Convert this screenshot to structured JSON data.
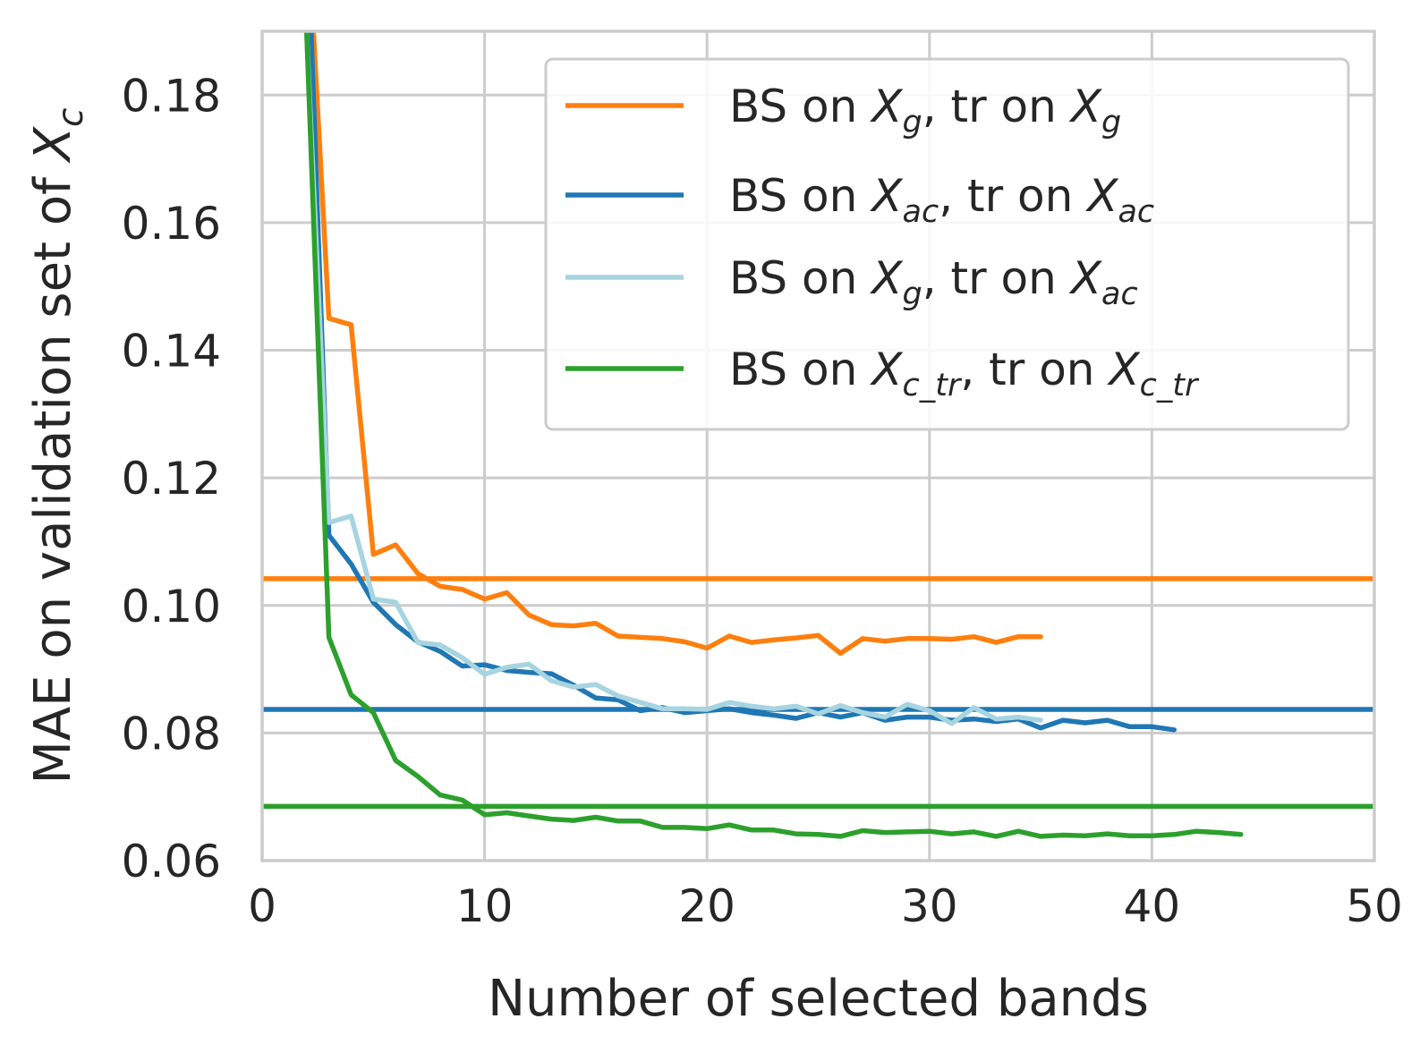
{
  "chart_data": {
    "type": "line",
    "xlabel": "Number of selected bands",
    "ylabel": {
      "text": "MAE on validation set of ",
      "var": "X",
      "sub": "c"
    },
    "xlim": [
      0,
      50
    ],
    "ylim": [
      0.06,
      0.19
    ],
    "xticks": [
      "0",
      "10",
      "20",
      "30",
      "40",
      "50"
    ],
    "yticks": [
      "0.06",
      "0.08",
      "0.10",
      "0.12",
      "0.14",
      "0.16",
      "0.18"
    ],
    "grid": true,
    "legend_position": "top-right",
    "series": [
      {
        "name": {
          "pre": "BS on ",
          "var1": "X",
          "sub1": "g",
          "mid": ", tr on ",
          "var2": "X",
          "sub2": "g"
        },
        "color": "#ff7f0e",
        "x": [
          2,
          3,
          4,
          5,
          6,
          7,
          8,
          9,
          10,
          11,
          12,
          13,
          14,
          15,
          16,
          17,
          18,
          19,
          20,
          21,
          22,
          23,
          24,
          25,
          26,
          27,
          28,
          29,
          30,
          31,
          32,
          33,
          34,
          35
        ],
        "y": [
          0.21,
          0.145,
          0.144,
          0.108,
          0.1095,
          0.105,
          0.103,
          0.1025,
          0.101,
          0.102,
          0.0985,
          0.097,
          0.0968,
          0.0972,
          0.0952,
          0.095,
          0.0948,
          0.0943,
          0.0933,
          0.0952,
          0.0942,
          0.0946,
          0.0949,
          0.0953,
          0.0925,
          0.0948,
          0.0944,
          0.0948,
          0.0948,
          0.0947,
          0.0951,
          0.0942,
          0.0951,
          0.0951
        ],
        "baseline": 0.1042
      },
      {
        "name": {
          "pre": "BS on ",
          "var1": "X",
          "sub1": "ac",
          "mid": ", tr on ",
          "var2": "X",
          "sub2": "ac"
        },
        "color": "#1f77b4",
        "x": [
          2,
          3,
          4,
          5,
          6,
          7,
          8,
          9,
          10,
          11,
          12,
          13,
          14,
          15,
          16,
          17,
          18,
          19,
          20,
          21,
          22,
          23,
          24,
          25,
          26,
          27,
          28,
          29,
          30,
          31,
          32,
          33,
          34,
          35,
          36,
          37,
          38,
          39,
          40,
          41
        ],
        "y": [
          0.21,
          0.111,
          0.1065,
          0.1005,
          0.097,
          0.0943,
          0.0928,
          0.0905,
          0.0907,
          0.0898,
          0.0895,
          0.0893,
          0.0875,
          0.0855,
          0.0852,
          0.0835,
          0.084,
          0.0832,
          0.0835,
          0.0838,
          0.0832,
          0.0828,
          0.0823,
          0.0832,
          0.0825,
          0.0832,
          0.082,
          0.0825,
          0.0825,
          0.082,
          0.0822,
          0.0818,
          0.0822,
          0.0808,
          0.082,
          0.0816,
          0.082,
          0.081,
          0.081,
          0.0805
        ],
        "baseline": 0.0837
      },
      {
        "name": {
          "pre": "BS on ",
          "var1": "X",
          "sub1": "g",
          "mid": ", tr on ",
          "var2": "X",
          "sub2": "ac"
        },
        "color": "#a6d4e0",
        "x": [
          2,
          3,
          4,
          5,
          6,
          7,
          8,
          9,
          10,
          11,
          12,
          13,
          14,
          15,
          16,
          17,
          18,
          19,
          20,
          21,
          22,
          23,
          24,
          25,
          26,
          27,
          28,
          29,
          30,
          31,
          32,
          33,
          34,
          35
        ],
        "y": [
          0.19,
          0.113,
          0.114,
          0.101,
          0.1005,
          0.0942,
          0.0938,
          0.0918,
          0.0892,
          0.0903,
          0.0908,
          0.0882,
          0.0872,
          0.0876,
          0.0858,
          0.0848,
          0.0838,
          0.0838,
          0.0837,
          0.0848,
          0.0842,
          0.0838,
          0.0842,
          0.083,
          0.0843,
          0.0832,
          0.0825,
          0.0845,
          0.0835,
          0.0815,
          0.084,
          0.0822,
          0.0825,
          0.082
        ]
      },
      {
        "name": {
          "pre": "BS on ",
          "var1": "X",
          "sub1": "c_tr",
          "mid": ", tr on ",
          "var2": "X",
          "sub2": "c_tr"
        },
        "color": "#2ca02c",
        "x": [
          2,
          3,
          4,
          5,
          6,
          7,
          8,
          9,
          10,
          11,
          12,
          13,
          14,
          15,
          16,
          17,
          18,
          19,
          20,
          21,
          22,
          23,
          24,
          25,
          26,
          27,
          28,
          29,
          30,
          31,
          32,
          33,
          34,
          35,
          36,
          37,
          38,
          39,
          40,
          41,
          42,
          43,
          44
        ],
        "y": [
          0.19,
          0.095,
          0.086,
          0.0832,
          0.0757,
          0.0732,
          0.0703,
          0.0695,
          0.0672,
          0.0675,
          0.067,
          0.0665,
          0.0663,
          0.0668,
          0.0662,
          0.0662,
          0.0652,
          0.0652,
          0.065,
          0.0656,
          0.0648,
          0.0648,
          0.0642,
          0.0641,
          0.0638,
          0.0647,
          0.0644,
          0.0645,
          0.0646,
          0.0642,
          0.0645,
          0.0638,
          0.0646,
          0.0638,
          0.064,
          0.0639,
          0.0642,
          0.0639,
          0.0639,
          0.0641,
          0.0646,
          0.0644,
          0.0641
        ],
        "baseline": 0.0685
      }
    ]
  }
}
